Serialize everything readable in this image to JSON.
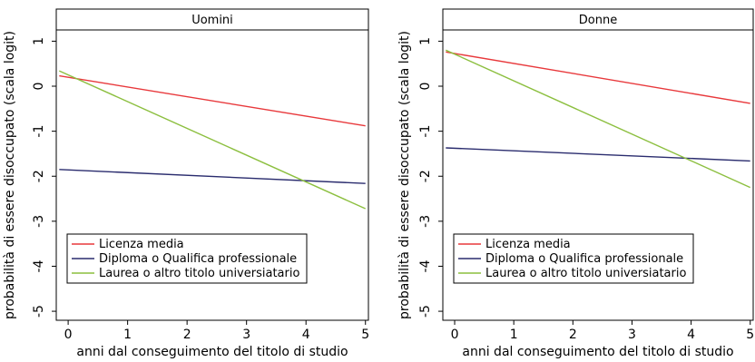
{
  "chart_data": [
    {
      "type": "line",
      "title": "Uomini",
      "xlabel": "anni dal conseguimento del titolo di studio",
      "ylabel": "probabilità di essere disoccupato (scala logit)",
      "xlim": [
        -0.2,
        5.05
      ],
      "ylim": [
        -5.2,
        1.25
      ],
      "x_ticks": [
        0,
        1,
        2,
        3,
        4,
        5
      ],
      "y_ticks": [
        1,
        0,
        -1,
        -2,
        -3,
        -4,
        -5
      ],
      "grid": false,
      "legend_position": "bottom-left",
      "series": [
        {
          "name": "Licenza media",
          "color": "#e8383b",
          "x": [
            -0.15,
            5
          ],
          "y": [
            0.23,
            -0.88
          ]
        },
        {
          "name": "Diploma o Qualifica professionale",
          "color": "#2a2c6e",
          "x": [
            -0.15,
            5
          ],
          "y": [
            -1.85,
            -2.16
          ]
        },
        {
          "name": "Laurea o altro titolo universiatario",
          "color": "#8cbf3f",
          "x": [
            -0.15,
            5
          ],
          "y": [
            0.34,
            -2.72
          ]
        }
      ]
    },
    {
      "type": "line",
      "title": "Donne",
      "xlabel": "anni dal conseguimento del titolo di studio",
      "ylabel": "probabilità di essere disoccupato (scala logit)",
      "xlim": [
        -0.2,
        5.05
      ],
      "ylim": [
        -5.2,
        1.25
      ],
      "x_ticks": [
        0,
        1,
        2,
        3,
        4,
        5
      ],
      "y_ticks": [
        1,
        0,
        -1,
        -2,
        -3,
        -4,
        -5
      ],
      "grid": false,
      "legend_position": "bottom-left",
      "series": [
        {
          "name": "Licenza media",
          "color": "#e8383b",
          "x": [
            -0.15,
            5
          ],
          "y": [
            0.76,
            -0.38
          ]
        },
        {
          "name": "Diploma o Qualifica professionale",
          "color": "#2a2c6e",
          "x": [
            -0.15,
            5
          ],
          "y": [
            -1.37,
            -1.66
          ]
        },
        {
          "name": "Laurea o altro titolo universiatario",
          "color": "#8cbf3f",
          "x": [
            -0.15,
            5
          ],
          "y": [
            0.8,
            -2.25
          ]
        }
      ]
    }
  ]
}
